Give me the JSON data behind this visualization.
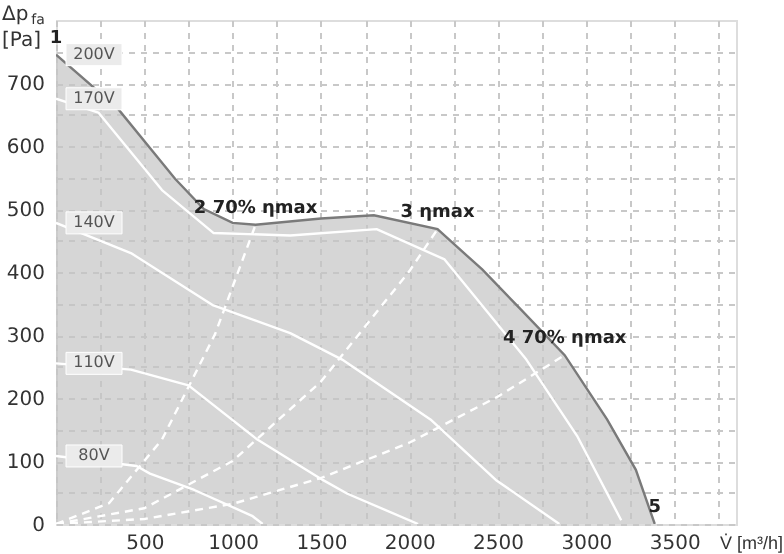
{
  "chart_data": {
    "type": "line",
    "xlabel": "V̇ [m³/h]",
    "ylabel": "Δp$_{fa}$ [Pa]",
    "xlim": [
      0,
      3850
    ],
    "ylim": [
      0,
      800
    ],
    "xticks": [
      {
        "value": 0,
        "label": null
      },
      {
        "value": 250,
        "label": null
      },
      500,
      {
        "value": 750,
        "label": null
      },
      1000,
      {
        "value": 1250,
        "label": null
      },
      1500,
      {
        "value": 1750,
        "label": null
      },
      2000,
      {
        "value": 2250,
        "label": null
      },
      2500,
      {
        "value": 2750,
        "label": null
      },
      3000,
      {
        "value": 3250,
        "label": null
      },
      3500,
      {
        "value": 3750,
        "label": null
      }
    ],
    "yticks": [
      0,
      {
        "value": 50,
        "label": null
      },
      100,
      {
        "value": 150,
        "label": null
      },
      200,
      {
        "value": 250,
        "label": null
      },
      300,
      {
        "value": 350,
        "label": null
      },
      400,
      {
        "value": 450,
        "label": null
      },
      500,
      {
        "value": 550,
        "label": null
      },
      600,
      {
        "value": 650,
        "label": null
      },
      700,
      {
        "value": 750,
        "label": null
      }
    ],
    "grid": true,
    "series": [
      {
        "name": "200V",
        "type": "area",
        "color": "#c4c4c4",
        "x": [
          0,
          348,
          674,
          837,
          1000,
          1130,
          1500,
          1800,
          2160,
          2413,
          2630,
          2880,
          3120,
          3283,
          3390
        ],
        "values": [
          745,
          660,
          548,
          500,
          478,
          475,
          485,
          490,
          468,
          404,
          341,
          268,
          166,
          86,
          0
        ]
      },
      {
        "name": "170V",
        "color": "#ffffff",
        "x": [
          0,
          240,
          600,
          891,
          1326,
          1815,
          2200,
          2663,
          2950,
          3200
        ],
        "values": [
          675,
          653,
          530,
          462,
          458,
          468,
          420,
          261,
          140,
          6
        ]
      },
      {
        "name": "140V",
        "color": "#ffffff",
        "x": [
          0,
          424,
          891,
          1326,
          1620,
          2120,
          2490,
          2850
        ],
        "values": [
          478,
          430,
          347,
          303,
          261,
          166,
          70,
          0
        ]
      },
      {
        "name": "110V",
        "color": "#ffffff",
        "x": [
          0,
          424,
          750,
          1140,
          1510,
          1650,
          2050
        ],
        "values": [
          255,
          245,
          220,
          134,
          70,
          48,
          0
        ]
      },
      {
        "name": "80V",
        "color": "#ffffff",
        "x": [
          0,
          456,
          532,
          783,
          1110,
          1170
        ],
        "values": [
          108,
          92,
          80,
          54,
          13,
          0
        ]
      },
      {
        "color": "#ffffff",
        "line_style": "dashed",
        "x": [
          0,
          300,
          600,
          900,
          1130
        ],
        "values": [
          0,
          33,
          134,
          301,
          475
        ]
      },
      {
        "color": "#ffffff",
        "line_style": "dashed",
        "x": [
          0,
          500,
          1000,
          1500,
          2000,
          2160
        ],
        "values": [
          0,
          25,
          100,
          226,
          401,
          468
        ]
      },
      {
        "color": "#ffffff",
        "line_style": "dashed",
        "x": [
          0,
          500,
          1000,
          1500,
          2000,
          2500,
          2880
        ],
        "values": [
          0,
          8,
          32,
          73,
          129,
          202,
          268
        ]
      }
    ],
    "annotations": [
      {
        "text": "1",
        "x": 0,
        "y": 745
      },
      {
        "text": "2 70% ηmax",
        "x": 1130,
        "y": 475
      },
      {
        "text": "3 ηmax",
        "x": 2160,
        "y": 468
      },
      {
        "text": "4 70% ηmax",
        "x": 2880,
        "y": 268
      },
      {
        "text": "5",
        "x": 3390,
        "y": 0
      }
    ]
  }
}
